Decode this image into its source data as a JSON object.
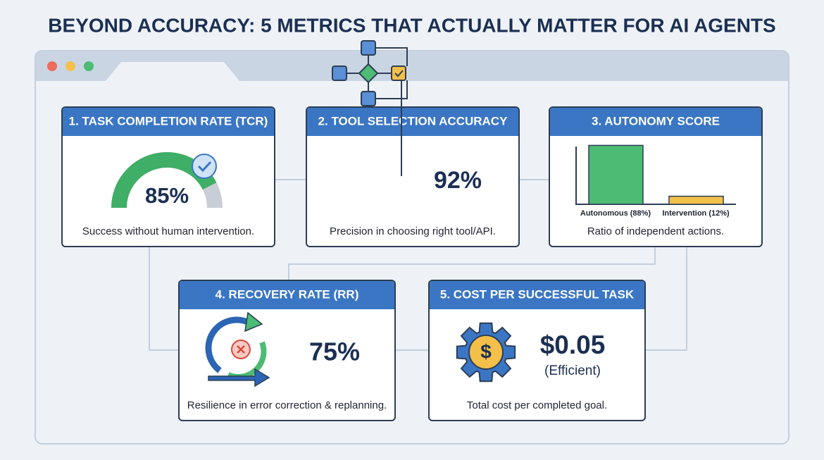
{
  "title": "BEYOND ACCURACY: 5 METRICS THAT ACTUALLY MATTER FOR AI AGENTS",
  "metrics": [
    {
      "heading": "1. TASK COMPLETION RATE (TCR)",
      "value": 85,
      "value_label": "85%",
      "description": "Success without human intervention."
    },
    {
      "heading": "2. TOOL SELECTION ACCURACY",
      "value_label": "92%",
      "description": "Precision in choosing right tool/API."
    },
    {
      "heading": "3. AUTONOMY SCORE",
      "bars": [
        {
          "label": "Autonomous (88%)",
          "value": 88,
          "color": "#4cbb74"
        },
        {
          "label": "Intervention (12%)",
          "value": 12,
          "color": "#f5c04a"
        }
      ],
      "description": "Ratio of independent actions."
    },
    {
      "heading": "4. RECOVERY RATE (RR)",
      "value_label": "75%",
      "description": "Resilience in error correction & replanning."
    },
    {
      "heading": "5. COST PER SUCCESSFUL TASK",
      "value_label": "$0.05",
      "note": "(Efficient)",
      "description": "Total cost per completed goal."
    }
  ]
}
